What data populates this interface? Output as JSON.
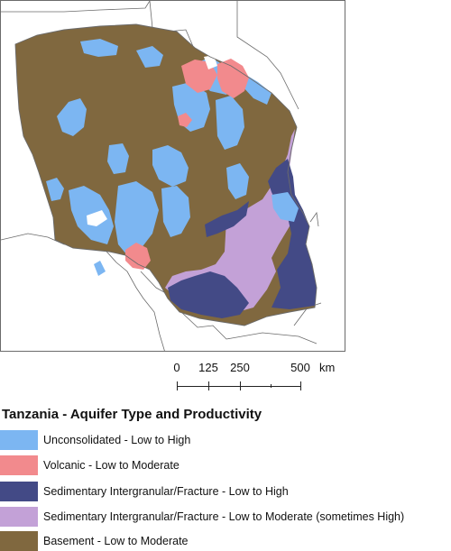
{
  "map": {
    "country": "Tanzania",
    "colors": {
      "unconsolidated": "#7cb6f2",
      "volcanic": "#f28a8d",
      "sed_low_high": "#434a86",
      "sed_low_moderate": "#c3a1d7",
      "basement": "#80683f",
      "border": "#6b6b6b"
    }
  },
  "scalebar": {
    "labels": [
      "0",
      "125",
      "250",
      "500"
    ],
    "unit": "km"
  },
  "legend": {
    "title": "Tanzania - Aquifer Type and Productivity",
    "items": [
      {
        "label": "Unconsolidated - Low to High",
        "color": "#7cb6f2"
      },
      {
        "label": "Volcanic - Low to Moderate",
        "color": "#f28a8d"
      },
      {
        "label": "Sedimentary Intergranular/Fracture - Low to High",
        "color": "#434a86"
      },
      {
        "label": "Sedimentary Intergranular/Fracture - Low to Moderate (sometimes High)",
        "color": "#c3a1d7"
      },
      {
        "label": "Basement - Low to Moderate",
        "color": "#80683f"
      }
    ]
  }
}
